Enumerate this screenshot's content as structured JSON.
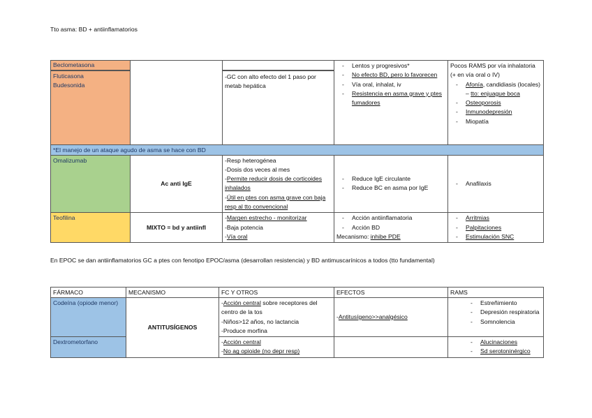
{
  "heading": "Tto asma: BD + antiinflamatorios",
  "epoc_note": "En EPOC se dan antiinflamatorios GC a ptes con fenotipo EPOC/asma (desarrollan resistencia) y BD antimuscarínicos a todos (tto fundamental)",
  "colors": {
    "orange": "#F4B183",
    "blue": "#9DC3E6",
    "green": "#A9D18E",
    "yellow": "#FFD966",
    "drug_text": "#1F3864"
  },
  "table1": {
    "beclometasona": "Beclometasona",
    "corticoides": [
      "Fluticasona",
      "Budesonida"
    ],
    "corticoides_fc": [
      [
        {
          "t": "-GC con alto efecto del 1 paso por metab hepática"
        }
      ]
    ],
    "corticoides_efectos": [
      [
        {
          "t": "Lentos y progresivos*"
        }
      ],
      [
        {
          "t": "No efecto BD, pero lo favorecen",
          "u": true
        }
      ],
      [
        {
          "t": "Vía oral, inhalat, iv"
        }
      ],
      [
        {
          "t": "Resistencia en asma grave y ptes fumadores",
          "u": true
        }
      ]
    ],
    "corticoides_rams_intro": "Pocos RAMS por vía inhalatoria (+ en vía oral o IV)",
    "corticoides_rams": [
      [
        {
          "t": "Afonía",
          "u": true
        },
        {
          "t": ", candidiasis (locales) – "
        },
        {
          "t": "tto: enjuague boca",
          "u": true
        }
      ],
      [
        {
          "t": "Osteoporosis",
          "u": true
        }
      ],
      [
        {
          "t": "Inmunodepresión",
          "u": true
        }
      ],
      [
        {
          "t": "Miopatía"
        }
      ]
    ],
    "banner": "*El manejo de un ataque agudo de asma se hace con BD",
    "omalizumab": {
      "name": "Omalizumab",
      "mechanism": "Ac anti IgE",
      "fc": [
        [
          {
            "t": "-Resp heterogénea"
          }
        ],
        [
          {
            "t": "-Dosis dos veces al mes"
          }
        ],
        [
          {
            "t": "-"
          },
          {
            "t": "Permite reducir dosis de corticoides inhalados",
            "u": true
          }
        ],
        [
          {
            "t": "-"
          },
          {
            "t": "Útil en ptes con asma grave con baja resp al tto convencional",
            "u": true
          }
        ]
      ],
      "efectos": [
        [
          {
            "t": "Reduce IgE circulante"
          }
        ],
        [
          {
            "t": "Reduce BC en asma por IgE"
          }
        ]
      ],
      "rams": [
        [
          {
            "t": "Anafilaxis"
          }
        ]
      ]
    },
    "teofilina": {
      "name": "Teofilina",
      "mechanism": "MIXTO = bd y antiinfl",
      "fc": [
        [
          {
            "t": "-"
          },
          {
            "t": "Margen estrecho - monitorizar",
            "u": true
          }
        ],
        [
          {
            "t": "-Baja potencia"
          }
        ],
        [
          {
            "t": "-"
          },
          {
            "t": "Vía oral",
            "u": true
          }
        ]
      ],
      "efectos": [
        [
          {
            "t": "Acción antiinflamatoria"
          }
        ],
        [
          {
            "t": "Acción BD"
          }
        ]
      ],
      "efectos_extra": [
        {
          "t": "Mecanismo: "
        },
        {
          "t": "inhibe PDE",
          "u": true
        }
      ],
      "rams": [
        [
          {
            "t": "Arritmias",
            "u": true
          }
        ],
        [
          {
            "t": "Palpitaciones",
            "u": true
          }
        ],
        [
          {
            "t": "Estimulación SNC",
            "u": true
          }
        ]
      ]
    }
  },
  "table2": {
    "headers": [
      "FÁRMACO",
      "MECANISMO",
      "FC Y OTROS",
      "EFECTOS",
      "RAMS"
    ],
    "mechanism": "ANTITUSÍGENOS",
    "codeina": {
      "name": "Codeína (opiode menor)",
      "fc": [
        [
          {
            "t": "-"
          },
          {
            "t": "Acción central",
            "u": true
          },
          {
            "t": " sobre receptores del centro de la tos"
          }
        ],
        [
          {
            "t": "-Niños>12 años, no lactancia"
          }
        ],
        [
          {
            "t": "-Produce morfina"
          }
        ]
      ],
      "efectos": [
        {
          "t": "-"
        },
        {
          "t": "Antitusígeno>>analgésico",
          "u": true
        }
      ],
      "rams": [
        [
          {
            "t": "Estreñimiento"
          }
        ],
        [
          {
            "t": "Depresión respiratoria"
          }
        ],
        [
          {
            "t": "Somnolencia"
          }
        ]
      ]
    },
    "dextrometorfano": {
      "name": "Dextrometorfano",
      "fc": [
        [
          {
            "t": "-"
          },
          {
            "t": "Acción central",
            "u": true
          }
        ],
        [
          {
            "t": "-"
          },
          {
            "t": "No ag opioide (no depr resp)",
            "u": true
          }
        ]
      ],
      "rams": [
        [
          {
            "t": "Alucinaciones",
            "u": true
          }
        ],
        [
          {
            "t": "Sd serotoninérgico",
            "u": true
          }
        ]
      ]
    }
  }
}
